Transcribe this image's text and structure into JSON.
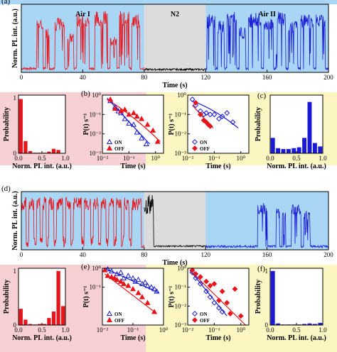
{
  "colors": {
    "air_bg": "#a9d6f5",
    "n2_bg": "#dcdcdc",
    "pink_bg": "#f6d0d3",
    "yellow_bg": "#fbf6c2",
    "red": "#e8141b",
    "blue": "#1a1ad6",
    "black": "#000000"
  },
  "chart_data": [
    {
      "id": "a",
      "panel_label": "(a)",
      "type": "line",
      "xlabel": "Time (s)",
      "ylabel": "Norm. PL int. (a.u.)",
      "xlim": [
        0,
        200
      ],
      "ylim": [
        0,
        1.05
      ],
      "xticks": [
        "0",
        "40",
        "80",
        "120",
        "160",
        "200"
      ],
      "regions": [
        {
          "label": "Air I",
          "x": [
            0,
            80
          ]
        },
        {
          "label": "N2",
          "x": [
            80,
            120
          ]
        },
        {
          "label": "Air II",
          "x": [
            120,
            200
          ]
        }
      ],
      "series": [
        {
          "color": "red",
          "x": [
            0,
            80
          ],
          "segments": [
            [
              10,
              14,
              0.82
            ],
            [
              16,
              18,
              0.7
            ],
            [
              22,
              28,
              0.85
            ],
            [
              30,
              34,
              0.6
            ],
            [
              36,
              44,
              0.92
            ],
            [
              48,
              56,
              0.95
            ],
            [
              58,
              62,
              0.55
            ],
            [
              64,
              70,
              0.95
            ],
            [
              72,
              77,
              0.9
            ]
          ]
        },
        {
          "color": "black",
          "x": [
            80,
            120
          ],
          "level": 0.03
        },
        {
          "color": "blue",
          "x": [
            120,
            200
          ],
          "segments": [
            [
              121,
              126,
              0.9
            ],
            [
              128,
              132,
              0.8
            ],
            [
              134,
              140,
              0.95
            ],
            [
              142,
              146,
              0.7
            ],
            [
              148,
              156,
              0.92
            ],
            [
              158,
              164,
              0.85
            ],
            [
              166,
              172,
              0.95
            ],
            [
              174,
              180,
              0.8
            ],
            [
              182,
              190,
              0.9
            ],
            [
              192,
              198,
              0.92
            ]
          ]
        }
      ]
    },
    {
      "id": "b_hist",
      "type": "bar",
      "xlabel": "Norm. PL int. (a.u.)",
      "ylabel": "Probability",
      "xlim": [
        0,
        1
      ],
      "ylim": [
        0,
        1.05
      ],
      "xticks": [
        "0.0",
        "0.5",
        "1.0"
      ],
      "yticks": [
        "0",
        "1"
      ],
      "color": "red",
      "categories": [
        0.05,
        0.15,
        0.25,
        0.35,
        0.45,
        0.55,
        0.65,
        0.75,
        0.85,
        0.95
      ],
      "values": [
        0.98,
        0.22,
        0.04,
        0.01,
        0.01,
        0.01,
        0.03,
        0.08,
        0.06,
        0.0
      ]
    },
    {
      "id": "b",
      "panel_label": "(b)",
      "type": "scatter",
      "xlabel": "Time (s)",
      "ylabel": "P(t) s⁻¹",
      "xlim": [
        0.01,
        2
      ],
      "ylim": [
        0.001,
        1
      ],
      "log": true,
      "xticks": [
        "10⁻²",
        "10⁻¹",
        "10⁰"
      ],
      "yticks": [
        "10⁻³",
        "10⁻²",
        "10⁻¹",
        "10⁰"
      ],
      "legend": [
        "ON",
        "OFF"
      ],
      "series": [
        {
          "name": "ON",
          "marker": "triangle-open",
          "color": "blue",
          "x": [
            0.02,
            0.03,
            0.04,
            0.05,
            0.07,
            0.1,
            0.15,
            0.2,
            0.3,
            0.45
          ],
          "y": [
            0.5,
            0.25,
            0.15,
            0.12,
            0.06,
            0.035,
            0.03,
            0.012,
            0.006,
            0.003
          ]
        },
        {
          "name": "OFF",
          "marker": "triangle-filled",
          "color": "red",
          "x": [
            0.02,
            0.03,
            0.05,
            0.07,
            0.1,
            0.15,
            0.2,
            0.3,
            0.5,
            0.8,
            1.2
          ],
          "y": [
            0.6,
            0.2,
            0.15,
            0.18,
            0.1,
            0.12,
            0.08,
            0.06,
            0.03,
            0.015,
            0.004
          ]
        }
      ],
      "fits": [
        {
          "color": "blue",
          "x": [
            0.015,
            0.6
          ],
          "y": [
            0.7,
            0.003
          ]
        },
        {
          "color": "red",
          "x": [
            0.015,
            1.5
          ],
          "y": [
            0.6,
            0.004
          ],
          "curved": true
        }
      ]
    },
    {
      "id": "c_scatter",
      "type": "scatter",
      "xlabel": "Time (s)",
      "ylabel": "P(t) s⁻¹",
      "xlim": [
        0.01,
        2
      ],
      "ylim": [
        0.001,
        1
      ],
      "log": true,
      "xticks": [
        "10⁻²",
        "10⁻¹",
        "10⁰"
      ],
      "yticks": [
        "10⁻³",
        "10⁻²",
        "10⁻¹",
        "10⁰"
      ],
      "legend": [
        "ON",
        "OFF"
      ],
      "series": [
        {
          "name": "ON",
          "marker": "diamond-open",
          "color": "blue",
          "x": [
            0.015,
            0.02,
            0.03,
            0.04,
            0.05,
            0.07,
            0.1,
            0.15,
            0.2,
            0.3,
            0.5
          ],
          "y": [
            0.6,
            0.3,
            0.15,
            0.1,
            0.12,
            0.1,
            0.1,
            0.06,
            0.08,
            0.12,
            0.04
          ]
        },
        {
          "name": "OFF",
          "marker": "diamond-filled",
          "color": "red",
          "x": [
            0.02,
            0.03,
            0.04,
            0.05,
            0.06,
            0.07
          ],
          "y": [
            0.4,
            0.1,
            0.05,
            0.04,
            0.03,
            0.025
          ]
        }
      ],
      "fits": [
        {
          "color": "blue",
          "x": [
            0.015,
            0.8
          ],
          "y": [
            0.5,
            0.02
          ],
          "curved": true
        },
        {
          "color": "red",
          "x": [
            0.015,
            0.09
          ],
          "y": [
            0.3,
            0.02
          ]
        }
      ]
    },
    {
      "id": "c_hist",
      "panel_label": "(c)",
      "type": "bar",
      "xlabel": "Norm. PL int. (a.u.)",
      "ylabel": "Probability",
      "xlim": [
        0,
        1
      ],
      "ylim": [
        0,
        0.34
      ],
      "xticks": [
        "0.0",
        "0.5",
        "1.0"
      ],
      "yticks": [],
      "color": "blue",
      "categories": [
        0.05,
        0.15,
        0.25,
        0.35,
        0.45,
        0.55,
        0.65,
        0.75,
        0.85,
        0.95
      ],
      "values": [
        0.09,
        0.03,
        0.025,
        0.025,
        0.03,
        0.035,
        0.09,
        0.3,
        0.06,
        0.04
      ]
    },
    {
      "id": "d",
      "panel_label": "(d)",
      "type": "line",
      "xlabel": "Time (s)",
      "ylabel": "Norm. PL int. (a.u.)",
      "xlim": [
        0,
        200
      ],
      "ylim": [
        0,
        1.05
      ],
      "xticks": [
        "0",
        "40",
        "80",
        "120",
        "160",
        "200"
      ],
      "series": [
        {
          "color": "red",
          "x": [
            0,
            80
          ],
          "segments": [
            [
              0,
              78,
              0.95
            ]
          ],
          "dips": [
            4,
            9,
            13,
            17,
            22,
            28,
            33,
            40,
            46,
            51,
            56,
            61,
            66,
            71
          ]
        },
        {
          "color": "black",
          "x": [
            80,
            120
          ],
          "level": 0.05,
          "spike": [
            80,
            86,
            1.0
          ]
        },
        {
          "color": "blue",
          "x": [
            120,
            200
          ],
          "segments": [
            [
              154,
              160,
              0.85
            ],
            [
              166,
              168,
              0.75
            ],
            [
              170,
              172,
              0.7
            ],
            [
              176,
              182,
              0.82
            ],
            [
              184,
              188,
              0.7
            ]
          ]
        }
      ]
    },
    {
      "id": "e_hist",
      "type": "bar",
      "xlabel": "Norm. PL int. (a.u.)",
      "ylabel": "Probability",
      "xlim": [
        0,
        1
      ],
      "ylim": [
        0,
        1.05
      ],
      "xticks": [
        "0.0",
        "0.5",
        "1.0"
      ],
      "yticks": [
        "0",
        "1"
      ],
      "color": "red",
      "categories": [
        0.05,
        0.15,
        0.25,
        0.35,
        0.45,
        0.55,
        0.65,
        0.75,
        0.85,
        0.95
      ],
      "values": [
        0.3,
        0.1,
        0.02,
        0.01,
        0.02,
        0.02,
        0.13,
        0.25,
        1.0,
        0.35
      ]
    },
    {
      "id": "e",
      "panel_label": "(e)",
      "type": "scatter",
      "xlabel": "Time (s)",
      "ylabel": "P(t) s⁻¹",
      "xlim": [
        0.01,
        1
      ],
      "ylim": [
        0.001,
        1
      ],
      "log": true,
      "xticks": [
        "10⁻²",
        "10⁻¹",
        "10⁰"
      ],
      "yticks": [
        "10⁻¹",
        "10⁰"
      ],
      "legend": [
        "ON",
        "OFF"
      ],
      "series": [
        {
          "name": "ON",
          "marker": "triangle-open",
          "color": "blue",
          "x": [
            0.015,
            0.02,
            0.03,
            0.04,
            0.05,
            0.07,
            0.1,
            0.12,
            0.15,
            0.2,
            0.25,
            0.3,
            0.4,
            0.5,
            0.6
          ],
          "y": [
            0.9,
            0.7,
            0.5,
            0.6,
            0.3,
            0.4,
            0.3,
            0.2,
            0.25,
            0.15,
            0.18,
            0.12,
            0.1,
            0.08,
            0.06
          ]
        },
        {
          "name": "OFF",
          "marker": "triangle-filled",
          "color": "red",
          "x": [
            0.012,
            0.015,
            0.02,
            0.025,
            0.03,
            0.04,
            0.05,
            0.07,
            0.1,
            0.15,
            0.2,
            0.3,
            0.5
          ],
          "y": [
            0.8,
            0.4,
            0.35,
            0.3,
            0.25,
            0.2,
            0.15,
            0.12,
            0.08,
            0.05,
            0.03,
            0.015,
            0.005
          ]
        }
      ],
      "fits": [
        {
          "color": "blue",
          "x": [
            0.012,
            0.7
          ],
          "y": [
            1.0,
            0.05
          ]
        },
        {
          "color": "red",
          "x": [
            0.012,
            0.6
          ],
          "y": [
            0.5,
            0.004
          ]
        }
      ]
    },
    {
      "id": "f_scatter",
      "type": "scatter",
      "xlabel": "Time (s)",
      "ylabel": "P(t) s⁻¹",
      "xlim": [
        0.01,
        2
      ],
      "ylim": [
        0.001,
        1
      ],
      "log": true,
      "xticks": [
        "10⁻²",
        "10⁻¹",
        "10⁰"
      ],
      "yticks": [
        "10⁻³",
        "10⁻²",
        "10⁻¹",
        "10⁰"
      ],
      "legend": [
        "ON",
        "OFF"
      ],
      "series": [
        {
          "name": "ON",
          "marker": "diamond-open",
          "color": "blue",
          "x": [
            0.015,
            0.02,
            0.03,
            0.05,
            0.07,
            0.1,
            0.15,
            0.2
          ],
          "y": [
            0.6,
            0.3,
            0.15,
            0.06,
            0.03,
            0.015,
            0.008,
            0.005
          ]
        },
        {
          "name": "OFF",
          "marker": "diamond-filled",
          "color": "red",
          "x": [
            0.015,
            0.02,
            0.03,
            0.05,
            0.07,
            0.1,
            0.15,
            0.2,
            0.3,
            0.4,
            0.6,
            1.0
          ],
          "y": [
            0.8,
            0.5,
            0.35,
            0.2,
            0.12,
            0.15,
            0.02,
            0.06,
            0.015,
            0.004,
            0.08,
            0.003
          ]
        }
      ],
      "fits": [
        {
          "color": "blue",
          "x": [
            0.012,
            0.3
          ],
          "y": [
            0.8,
            0.003
          ]
        },
        {
          "color": "red",
          "x": [
            0.012,
            1.5
          ],
          "y": [
            0.8,
            0.001
          ]
        }
      ]
    },
    {
      "id": "f_hist",
      "panel_label": "(f)",
      "type": "bar",
      "xlabel": "Norm. PL int. (a.u.)",
      "ylabel": "Probability",
      "xlim": [
        0,
        1
      ],
      "ylim": [
        0,
        1.05
      ],
      "xticks": [
        "0.0",
        "0.5",
        "1.0"
      ],
      "yticks": [
        "0",
        "1"
      ],
      "color": "blue",
      "categories": [
        0.05,
        0.15,
        0.25,
        0.35,
        0.45,
        0.55,
        0.65,
        0.75,
        0.85,
        0.95
      ],
      "values": [
        1.0,
        0.03,
        0.01,
        0.01,
        0.01,
        0.01,
        0.02,
        0.03,
        0.02,
        0.04
      ]
    }
  ]
}
